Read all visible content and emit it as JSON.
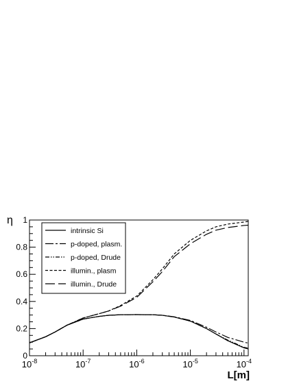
{
  "chart_data": {
    "type": "line",
    "title": "",
    "xlabel": "L[m]",
    "ylabel": "η",
    "xscale": "log",
    "xlim": [
      1e-08,
      0.00012
    ],
    "ylim": [
      0,
      1
    ],
    "grid": false,
    "legend_position": "top-left",
    "x_ticks": [
      {
        "value": 1e-08,
        "base": "10",
        "exp": "-8"
      },
      {
        "value": 1e-07,
        "base": "10",
        "exp": "-7"
      },
      {
        "value": 1e-06,
        "base": "10",
        "exp": "-6"
      },
      {
        "value": 1e-05,
        "base": "10",
        "exp": "-5"
      },
      {
        "value": 0.0001,
        "base": "10",
        "exp": "-4"
      }
    ],
    "y_ticks": [
      {
        "value": 0,
        "label": "0"
      },
      {
        "value": 0.2,
        "label": "0.2"
      },
      {
        "value": 0.4,
        "label": "0.4"
      },
      {
        "value": 0.6,
        "label": "0.6"
      },
      {
        "value": 0.8,
        "label": "0.8"
      },
      {
        "value": 1,
        "label": "1"
      }
    ],
    "series": [
      {
        "name": "intrinsic Si",
        "dash": "",
        "x": [
          1e-08,
          2e-08,
          3e-08,
          5e-08,
          1e-07,
          2e-07,
          3e-07,
          5e-07,
          1e-06,
          2e-06,
          3e-06,
          5e-06,
          1e-05,
          2e-05,
          3e-05,
          5e-05,
          0.0001,
          0.00012
        ],
        "y": [
          0.095,
          0.14,
          0.175,
          0.225,
          0.27,
          0.29,
          0.298,
          0.302,
          0.303,
          0.302,
          0.298,
          0.285,
          0.255,
          0.2,
          0.16,
          0.11,
          0.058,
          0.05
        ]
      },
      {
        "name": "p-doped,  plasm.",
        "dash": "12,3,3,3",
        "x": [
          1e-08,
          2e-08,
          3e-08,
          5e-08,
          1e-07,
          2e-07,
          3e-07,
          5e-07,
          1e-06,
          2e-06,
          3e-06,
          5e-06,
          1e-05,
          2e-05,
          3e-05,
          5e-05,
          0.0001,
          0.00012
        ],
        "y": [
          0.095,
          0.14,
          0.175,
          0.225,
          0.27,
          0.29,
          0.298,
          0.302,
          0.303,
          0.302,
          0.298,
          0.287,
          0.26,
          0.21,
          0.175,
          0.135,
          0.1,
          0.093
        ]
      },
      {
        "name": "p-doped,  Drude",
        "dash": "6,2,1.5,2,1.5,2",
        "x": [
          1e-08,
          2e-08,
          3e-08,
          5e-08,
          1e-07,
          2e-07,
          3e-07,
          5e-07,
          1e-06,
          2e-06,
          3e-06,
          5e-06,
          1e-05,
          2e-05,
          3e-05,
          5e-05,
          0.0001,
          0.00012
        ],
        "y": [
          0.095,
          0.14,
          0.175,
          0.225,
          0.27,
          0.29,
          0.298,
          0.302,
          0.303,
          0.302,
          0.298,
          0.285,
          0.255,
          0.2,
          0.16,
          0.115,
          0.062,
          0.055
        ]
      },
      {
        "name": "illumin., plasm",
        "dash": "4,2.5",
        "x": [
          1e-08,
          2e-08,
          3e-08,
          5e-08,
          1e-07,
          2e-07,
          3e-07,
          5e-07,
          1e-06,
          2e-06,
          3e-06,
          5e-06,
          1e-05,
          2e-05,
          3e-05,
          5e-05,
          0.0001,
          0.00012
        ],
        "y": [
          0.095,
          0.14,
          0.175,
          0.225,
          0.278,
          0.31,
          0.33,
          0.37,
          0.44,
          0.56,
          0.64,
          0.75,
          0.85,
          0.92,
          0.95,
          0.97,
          0.985,
          0.99
        ]
      },
      {
        "name": "illumin.,  Drude",
        "dash": "14,5",
        "x": [
          1e-08,
          2e-08,
          3e-08,
          5e-08,
          1e-07,
          2e-07,
          3e-07,
          5e-07,
          1e-06,
          2e-06,
          3e-06,
          5e-06,
          1e-05,
          2e-05,
          3e-05,
          5e-05,
          0.0001,
          0.00012
        ],
        "y": [
          0.095,
          0.14,
          0.175,
          0.225,
          0.278,
          0.31,
          0.33,
          0.365,
          0.43,
          0.545,
          0.62,
          0.73,
          0.825,
          0.895,
          0.925,
          0.945,
          0.96,
          0.962
        ]
      }
    ]
  }
}
